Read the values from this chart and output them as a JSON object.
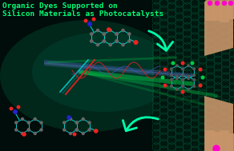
{
  "bg_color": "#010d0a",
  "title_line1": "Organic Dyes Supported on",
  "title_line2": "Silicon Materials as Photocatalysts",
  "title_color": "#00ff77",
  "title_fontsize": 6.8,
  "arrow_color": "#00ffaa",
  "grid_color": "#003322",
  "hand_color": "#c8956a",
  "nail_color": "#ff00cc",
  "dark_panel_color": "#001810",
  "bg_gradient_color": "#003322"
}
